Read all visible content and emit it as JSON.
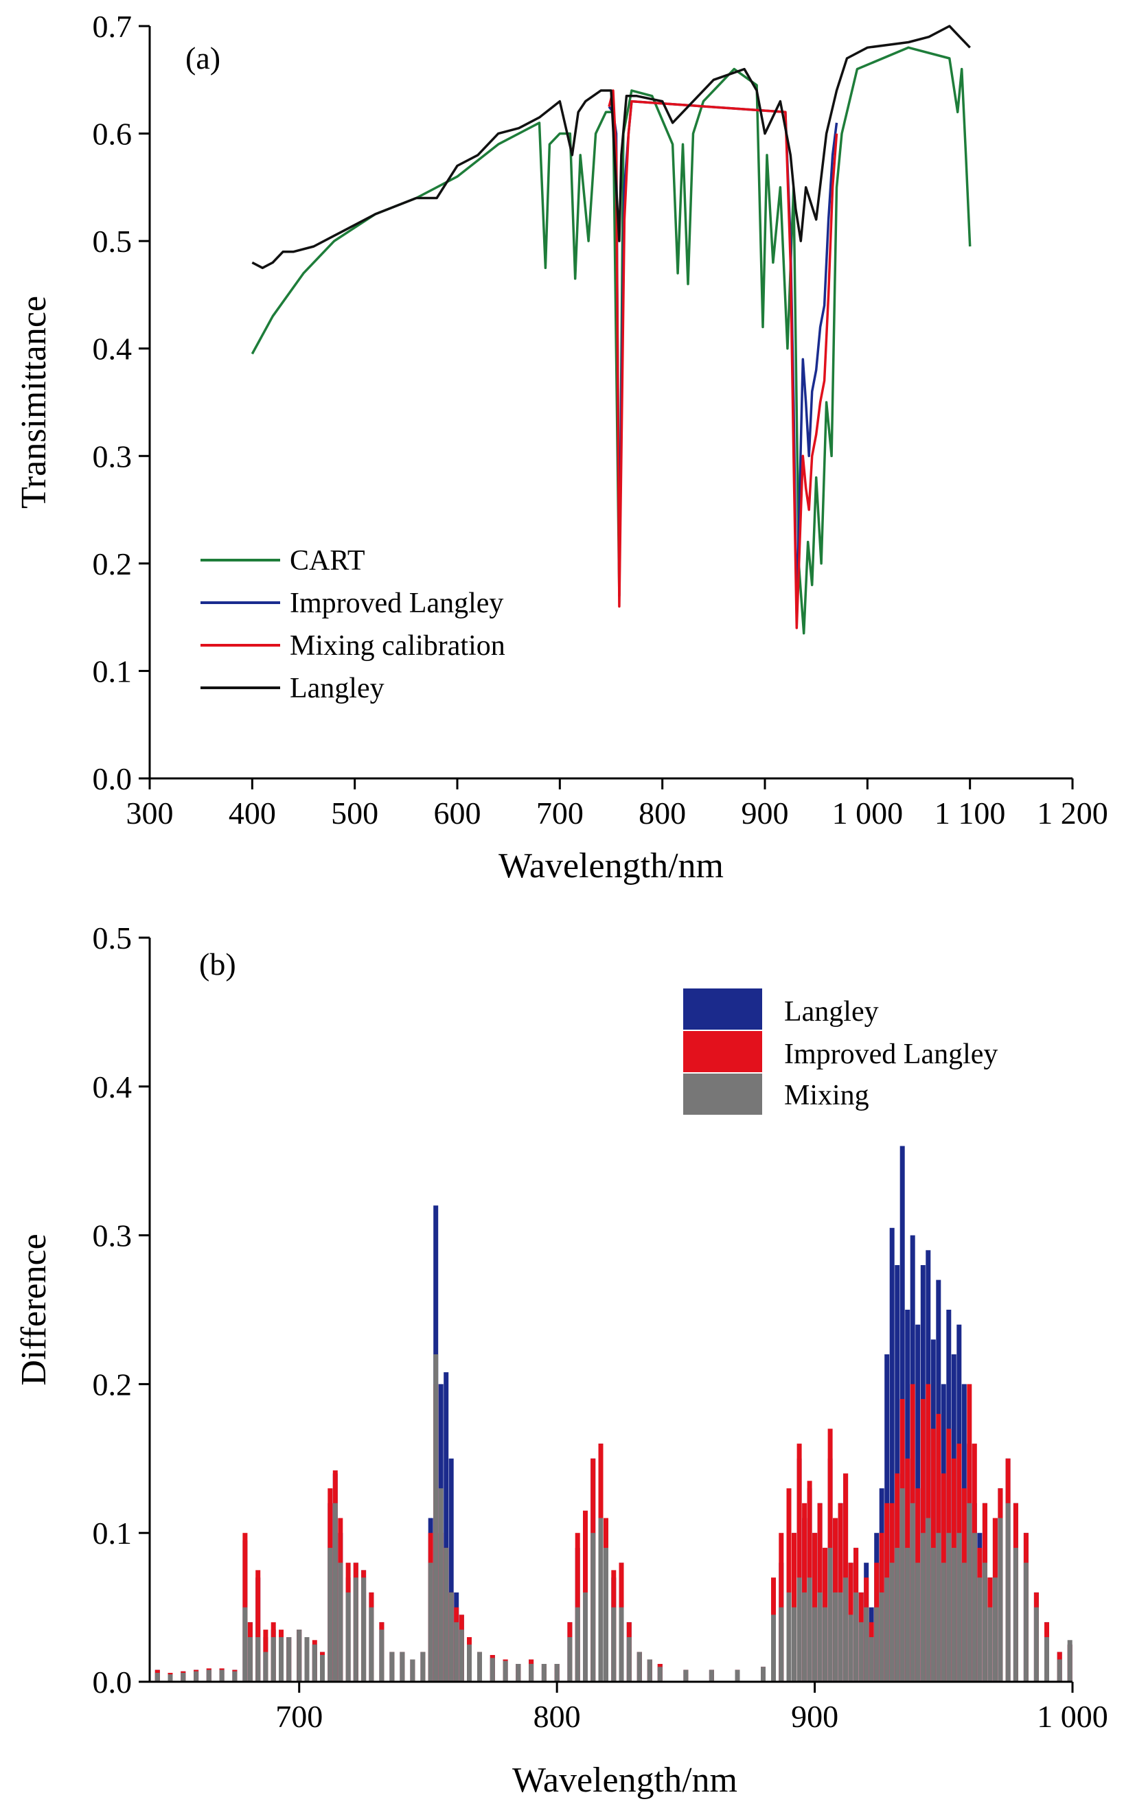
{
  "chart_data": [
    {
      "panel_label": "(a)",
      "type": "line",
      "xlabel": "Wavelength/nm",
      "ylabel": "Transimittance",
      "xlim": [
        300,
        1200
      ],
      "ylim": [
        0.0,
        0.7
      ],
      "xticks": [
        300,
        400,
        500,
        600,
        700,
        800,
        900,
        1000,
        1100,
        1200
      ],
      "xtick_labels": [
        "300",
        "400",
        "500",
        "600",
        "700",
        "800",
        "900",
        "1 000",
        "1 100",
        "1 200"
      ],
      "yticks": [
        0.0,
        0.1,
        0.2,
        0.3,
        0.4,
        0.5,
        0.6,
        0.7
      ],
      "ytick_labels": [
        "0.0",
        "0.1",
        "0.2",
        "0.3",
        "0.4",
        "0.5",
        "0.6",
        "0.7"
      ],
      "grid": false,
      "legend": "bottom-left",
      "series": [
        {
          "name": "CART",
          "color": "#1e7d3a",
          "x": [
            400,
            420,
            450,
            480,
            520,
            560,
            600,
            640,
            680,
            686,
            690,
            700,
            710,
            715,
            720,
            728,
            735,
            745,
            752,
            758,
            762,
            770,
            790,
            810,
            815,
            820,
            825,
            830,
            840,
            870,
            892,
            898,
            902,
            908,
            915,
            922,
            928,
            933,
            938,
            942,
            946,
            950,
            955,
            960,
            965,
            970,
            975,
            990,
            1040,
            1080,
            1088,
            1092,
            1096,
            1100
          ],
          "y": [
            0.395,
            0.43,
            0.47,
            0.5,
            0.525,
            0.54,
            0.56,
            0.59,
            0.61,
            0.475,
            0.59,
            0.6,
            0.6,
            0.465,
            0.58,
            0.5,
            0.6,
            0.62,
            0.62,
            0.17,
            0.6,
            0.64,
            0.635,
            0.59,
            0.47,
            0.59,
            0.46,
            0.6,
            0.63,
            0.66,
            0.645,
            0.42,
            0.58,
            0.48,
            0.55,
            0.4,
            0.55,
            0.2,
            0.135,
            0.22,
            0.18,
            0.28,
            0.2,
            0.35,
            0.3,
            0.55,
            0.6,
            0.66,
            0.68,
            0.67,
            0.62,
            0.66,
            0.58,
            0.495
          ]
        },
        {
          "name": "Improved Langley",
          "color": "#1a2c8f",
          "x": [
            748,
            752,
            755,
            758,
            760,
            763,
            767,
            770,
            920,
            925,
            928,
            931,
            934,
            937,
            940,
            943,
            946,
            950,
            954,
            958,
            962,
            966,
            970
          ],
          "y": [
            0.625,
            0.62,
            0.6,
            0.17,
            0.35,
            0.55,
            0.6,
            0.63,
            0.62,
            0.5,
            0.35,
            0.15,
            0.27,
            0.39,
            0.35,
            0.3,
            0.36,
            0.38,
            0.42,
            0.44,
            0.52,
            0.58,
            0.61
          ]
        },
        {
          "name": "Mixing calibration",
          "color": "#e0101c",
          "x": [
            748,
            752,
            755,
            758,
            760,
            763,
            767,
            770,
            920,
            925,
            928,
            931,
            934,
            937,
            940,
            943,
            946,
            950,
            954,
            958,
            962,
            966,
            970
          ],
          "y": [
            0.625,
            0.64,
            0.58,
            0.16,
            0.3,
            0.52,
            0.6,
            0.63,
            0.62,
            0.48,
            0.3,
            0.14,
            0.22,
            0.3,
            0.27,
            0.25,
            0.3,
            0.32,
            0.35,
            0.37,
            0.45,
            0.55,
            0.6
          ]
        },
        {
          "name": "Langley",
          "color": "#111111",
          "x": [
            400,
            410,
            420,
            430,
            440,
            460,
            480,
            500,
            520,
            560,
            580,
            600,
            620,
            640,
            660,
            680,
            700,
            712,
            718,
            725,
            740,
            750,
            755,
            758,
            760,
            765,
            775,
            800,
            810,
            830,
            850,
            880,
            892,
            900,
            915,
            925,
            930,
            935,
            940,
            950,
            960,
            970,
            980,
            1000,
            1040,
            1060,
            1080,
            1090,
            1100
          ],
          "y": [
            0.48,
            0.475,
            0.48,
            0.49,
            0.49,
            0.495,
            0.505,
            0.515,
            0.525,
            0.54,
            0.54,
            0.57,
            0.58,
            0.6,
            0.605,
            0.615,
            0.63,
            0.58,
            0.62,
            0.63,
            0.64,
            0.64,
            0.55,
            0.5,
            0.58,
            0.635,
            0.635,
            0.63,
            0.61,
            0.63,
            0.65,
            0.66,
            0.64,
            0.6,
            0.63,
            0.58,
            0.53,
            0.5,
            0.55,
            0.52,
            0.6,
            0.64,
            0.67,
            0.68,
            0.685,
            0.69,
            0.7,
            0.69,
            0.68
          ]
        }
      ]
    },
    {
      "panel_label": "(b)",
      "type": "bar",
      "xlabel": "Wavelength/nm",
      "ylabel": "Difference",
      "xlim": [
        642,
        1000
      ],
      "ylim": [
        0.0,
        0.5
      ],
      "xticks": [
        700,
        800,
        900,
        1000
      ],
      "xtick_labels": [
        "700",
        "800",
        "900",
        "1 000"
      ],
      "yticks": [
        0.0,
        0.1,
        0.2,
        0.3,
        0.4,
        0.5
      ],
      "ytick_labels": [
        "0.0",
        "0.1",
        "0.2",
        "0.3",
        "0.4",
        "0.5"
      ],
      "grid": false,
      "legend": "top-right",
      "x": [
        645,
        650,
        655,
        660,
        665,
        670,
        675,
        679,
        681,
        684,
        687,
        690,
        693,
        696,
        700,
        703,
        706,
        709,
        712,
        714,
        716,
        719,
        722,
        725,
        728,
        732,
        736,
        740,
        744,
        748,
        751,
        753,
        755,
        757,
        759,
        761,
        763,
        766,
        770,
        775,
        780,
        785,
        790,
        795,
        800,
        805,
        808,
        811,
        814,
        817,
        819,
        822,
        825,
        828,
        832,
        836,
        840,
        850,
        860,
        870,
        880,
        884,
        887,
        890,
        892,
        894,
        896,
        898,
        900,
        902,
        904,
        906,
        908,
        910,
        912,
        914,
        916,
        918,
        920,
        922,
        924,
        926,
        928,
        930,
        932,
        934,
        936,
        938,
        940,
        942,
        944,
        946,
        948,
        950,
        952,
        954,
        956,
        958,
        960,
        962,
        964,
        966,
        968,
        970,
        972,
        975,
        978,
        982,
        986,
        990,
        995,
        999
      ],
      "series": [
        {
          "name": "Langley",
          "color": "#1b2a8c",
          "values": [
            0.008,
            0.006,
            0.007,
            0.008,
            0.009,
            0.009,
            0.008,
            0.095,
            0.04,
            0.07,
            0.03,
            0.035,
            0.03,
            0.03,
            0.035,
            0.03,
            0.025,
            0.02,
            0.12,
            0.14,
            0.1,
            0.07,
            0.08,
            0.075,
            0.06,
            0.04,
            0.02,
            0.02,
            0.015,
            0.02,
            0.11,
            0.32,
            0.2,
            0.208,
            0.15,
            0.06,
            0.045,
            0.03,
            0.02,
            0.018,
            0.015,
            0.012,
            0.015,
            0.012,
            0.012,
            0.04,
            0.09,
            0.11,
            0.15,
            0.16,
            0.11,
            0.07,
            0.08,
            0.04,
            0.02,
            0.015,
            0.012,
            0.008,
            0.008,
            0.008,
            0.01,
            0.06,
            0.08,
            0.12,
            0.1,
            0.15,
            0.11,
            0.13,
            0.1,
            0.12,
            0.09,
            0.15,
            0.11,
            0.12,
            0.14,
            0.08,
            0.09,
            0.06,
            0.08,
            0.05,
            0.1,
            0.13,
            0.22,
            0.305,
            0.28,
            0.36,
            0.25,
            0.3,
            0.24,
            0.28,
            0.29,
            0.23,
            0.27,
            0.2,
            0.25,
            0.22,
            0.24,
            0.2,
            0.16,
            0.12,
            0.1,
            0.12,
            0.07,
            0.11,
            0.13,
            0.15,
            0.12,
            0.1,
            0.06,
            0.04,
            0.02,
            0.025
          ]
        },
        {
          "name": "Improved Langley",
          "color": "#e3111c",
          "values": [
            0.008,
            0.006,
            0.007,
            0.008,
            0.009,
            0.009,
            0.008,
            0.1,
            0.04,
            0.075,
            0.035,
            0.04,
            0.035,
            0.03,
            0.035,
            0.03,
            0.028,
            0.02,
            0.13,
            0.142,
            0.11,
            0.08,
            0.08,
            0.075,
            0.06,
            0.04,
            0.02,
            0.02,
            0.015,
            0.02,
            0.1,
            0.2,
            0.1,
            0.09,
            0.06,
            0.05,
            0.045,
            0.03,
            0.02,
            0.018,
            0.015,
            0.012,
            0.015,
            0.012,
            0.012,
            0.04,
            0.1,
            0.115,
            0.15,
            0.16,
            0.11,
            0.075,
            0.08,
            0.04,
            0.02,
            0.015,
            0.012,
            0.008,
            0.008,
            0.008,
            0.01,
            0.07,
            0.1,
            0.13,
            0.1,
            0.16,
            0.12,
            0.135,
            0.1,
            0.12,
            0.09,
            0.17,
            0.11,
            0.12,
            0.14,
            0.08,
            0.09,
            0.06,
            0.07,
            0.04,
            0.08,
            0.1,
            0.12,
            0.12,
            0.14,
            0.19,
            0.15,
            0.2,
            0.13,
            0.19,
            0.2,
            0.17,
            0.18,
            0.14,
            0.17,
            0.15,
            0.16,
            0.13,
            0.2,
            0.16,
            0.09,
            0.12,
            0.07,
            0.11,
            0.13,
            0.15,
            0.12,
            0.1,
            0.06,
            0.04,
            0.02,
            0.025
          ]
        },
        {
          "name": "Mixing",
          "color": "#777777",
          "values": [
            0.006,
            0.005,
            0.006,
            0.007,
            0.008,
            0.008,
            0.007,
            0.05,
            0.03,
            0.03,
            0.02,
            0.03,
            0.03,
            0.03,
            0.035,
            0.03,
            0.025,
            0.018,
            0.09,
            0.12,
            0.08,
            0.06,
            0.07,
            0.07,
            0.05,
            0.035,
            0.02,
            0.02,
            0.015,
            0.02,
            0.08,
            0.22,
            0.13,
            0.09,
            0.06,
            0.04,
            0.035,
            0.025,
            0.02,
            0.016,
            0.014,
            0.012,
            0.012,
            0.012,
            0.012,
            0.03,
            0.05,
            0.06,
            0.1,
            0.11,
            0.09,
            0.05,
            0.05,
            0.03,
            0.02,
            0.015,
            0.01,
            0.008,
            0.008,
            0.008,
            0.01,
            0.045,
            0.05,
            0.06,
            0.05,
            0.07,
            0.06,
            0.07,
            0.05,
            0.06,
            0.05,
            0.09,
            0.06,
            0.06,
            0.07,
            0.045,
            0.06,
            0.04,
            0.05,
            0.03,
            0.05,
            0.06,
            0.07,
            0.08,
            0.09,
            0.13,
            0.09,
            0.12,
            0.08,
            0.1,
            0.11,
            0.09,
            0.1,
            0.08,
            0.1,
            0.09,
            0.1,
            0.08,
            0.12,
            0.1,
            0.07,
            0.08,
            0.05,
            0.07,
            0.11,
            0.12,
            0.09,
            0.08,
            0.05,
            0.03,
            0.015,
            0.028
          ]
        }
      ]
    }
  ]
}
